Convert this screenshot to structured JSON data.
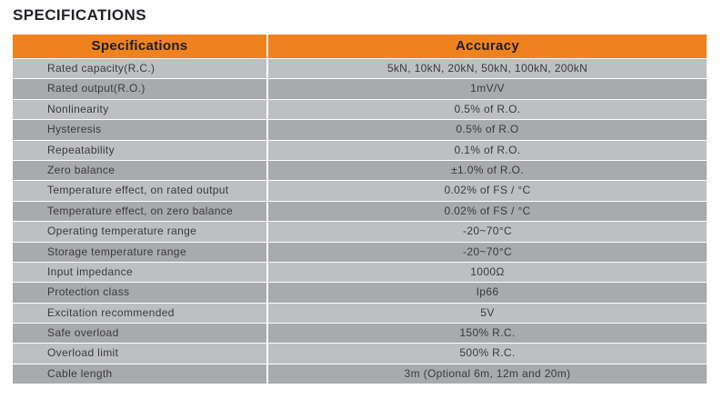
{
  "page_title": "SPECIFICATIONS",
  "colors": {
    "header_bg": "#F0821E",
    "row_light": "#BDBFC1",
    "row_dark": "#A8AAAD",
    "header_text": "#1D1D1F",
    "cell_text": "#3A3A3C",
    "title_text": "#1F2126",
    "divider": "#FFFFFF"
  },
  "table": {
    "columns": [
      "Specifications",
      "Accuracy"
    ],
    "rows": [
      {
        "label": "Rated capacity(R.C.)",
        "value": "5kN, 10kN, 20kN, 50kN, 100kN, 200kN"
      },
      {
        "label": "Rated output(R.O.)",
        "value": "1mV/V"
      },
      {
        "label": "Nonlinearity",
        "value": "0.5% of R.O."
      },
      {
        "label": "Hysteresis",
        "value": "0.5% of R.O"
      },
      {
        "label": "Repeatability",
        "value": "0.1% of R.O."
      },
      {
        "label": "Zero balance",
        "value": "±1.0% of R.O."
      },
      {
        "label": "Temperature effect, on rated output",
        "value": "0.02% of FS / °C"
      },
      {
        "label": "Temperature effect, on zero balance",
        "value": "0.02% of FS / °C"
      },
      {
        "label": "Operating temperature range",
        "value": "-20~70°C"
      },
      {
        "label": "Storage temperature range",
        "value": "-20~70°C"
      },
      {
        "label": "Input impedance",
        "value": "1000Ω"
      },
      {
        "label": "Protection class",
        "value": "Ip66"
      },
      {
        "label": "Excitation recommended",
        "value": "5V"
      },
      {
        "label": "Safe overload",
        "value": "150% R.C."
      },
      {
        "label": "Overload limit",
        "value": "500% R.C."
      },
      {
        "label": "Cable length",
        "value": "3m (Optional 6m, 12m and 20m)"
      }
    ]
  }
}
